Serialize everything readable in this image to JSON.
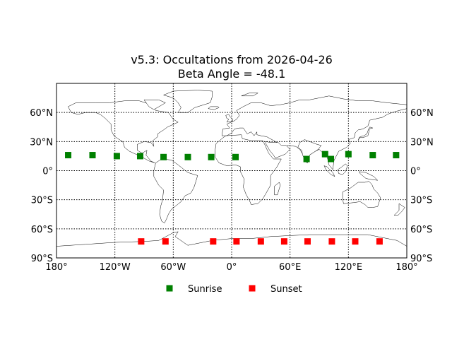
{
  "chart_data": {
    "type": "scatter",
    "title_line1": "v5.3: Occultations from 2026-04-26",
    "title_line2": "Beta Angle = -48.1",
    "projection": "equirectangular",
    "xlim": [
      -180,
      180
    ],
    "ylim": [
      -90,
      90
    ],
    "grid": true,
    "legend_placement": "bottom-center",
    "x_ticks": [
      {
        "value": -180,
        "label": "180°"
      },
      {
        "value": -120,
        "label": "120°W"
      },
      {
        "value": -60,
        "label": "60°W"
      },
      {
        "value": 0,
        "label": "0°"
      },
      {
        "value": 60,
        "label": "60°E"
      },
      {
        "value": 120,
        "label": "120°E"
      },
      {
        "value": 180,
        "label": "180°"
      }
    ],
    "y_ticks": [
      {
        "value": 60,
        "label": "60°N"
      },
      {
        "value": 30,
        "label": "30°N"
      },
      {
        "value": 0,
        "label": "0°"
      },
      {
        "value": -30,
        "label": "30°S"
      },
      {
        "value": -60,
        "label": "60°S"
      },
      {
        "value": -90,
        "label": "90°S"
      }
    ],
    "series": [
      {
        "name": "Sunrise",
        "color": "#008000",
        "marker": "square",
        "points": [
          {
            "lon": -168,
            "lat": 16
          },
          {
            "lon": -143,
            "lat": 16
          },
          {
            "lon": -118,
            "lat": 15
          },
          {
            "lon": -94,
            "lat": 15
          },
          {
            "lon": -70,
            "lat": 14
          },
          {
            "lon": -45,
            "lat": 14
          },
          {
            "lon": -21,
            "lat": 14
          },
          {
            "lon": 4,
            "lat": 14
          },
          {
            "lon": 77,
            "lat": 12
          },
          {
            "lon": 96,
            "lat": 17
          },
          {
            "lon": 102,
            "lat": 12
          },
          {
            "lon": 120,
            "lat": 17
          },
          {
            "lon": 145,
            "lat": 16
          },
          {
            "lon": 169,
            "lat": 16
          }
        ]
      },
      {
        "name": "Sunset",
        "color": "#ff0000",
        "marker": "square",
        "points": [
          {
            "lon": -93,
            "lat": -73
          },
          {
            "lon": -68,
            "lat": -73
          },
          {
            "lon": -19,
            "lat": -73
          },
          {
            "lon": 5,
            "lat": -73
          },
          {
            "lon": 30,
            "lat": -73
          },
          {
            "lon": 54,
            "lat": -73
          },
          {
            "lon": 78,
            "lat": -73
          },
          {
            "lon": 103,
            "lat": -73
          },
          {
            "lon": 127,
            "lat": -73
          },
          {
            "lon": 152,
            "lat": -73
          }
        ]
      }
    ]
  }
}
